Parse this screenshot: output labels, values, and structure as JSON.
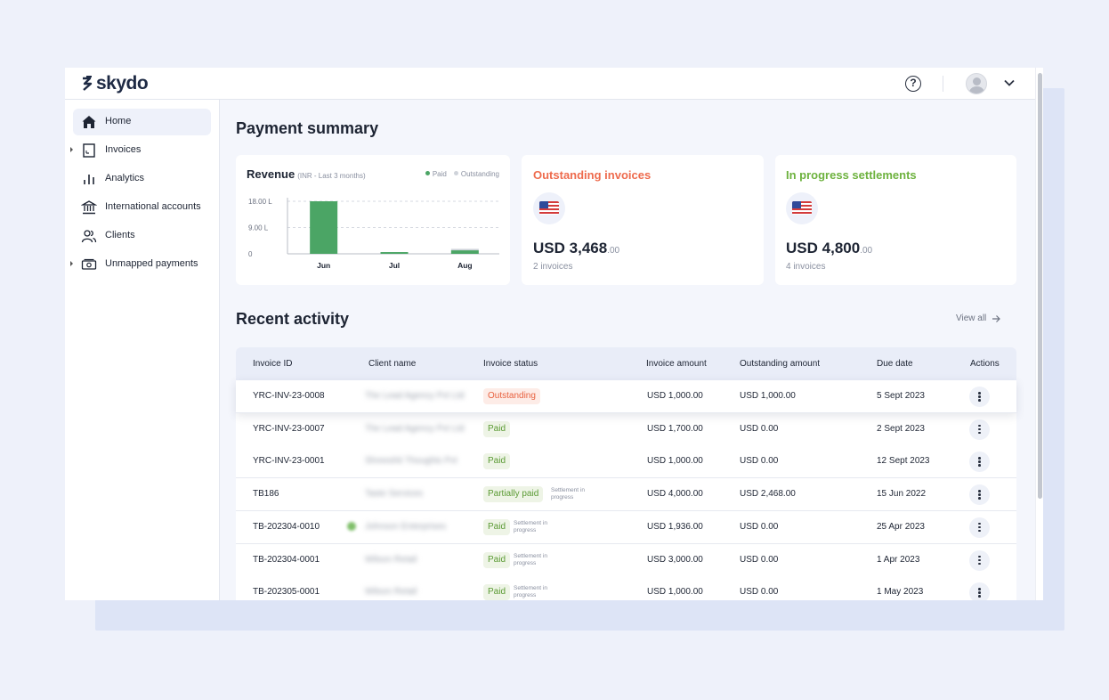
{
  "app": {
    "brand": "skydo"
  },
  "sidebar": {
    "items": [
      {
        "label": "Home",
        "icon": "home-icon",
        "active": true
      },
      {
        "label": "Invoices",
        "icon": "invoice-icon",
        "expandable": true
      },
      {
        "label": "Analytics",
        "icon": "analytics-icon"
      },
      {
        "label": "International accounts",
        "icon": "bank-icon"
      },
      {
        "label": "Clients",
        "icon": "clients-icon"
      },
      {
        "label": "Unmapped payments",
        "icon": "payment-icon",
        "expandable": true
      }
    ]
  },
  "summary": {
    "title": "Payment summary",
    "revenue": {
      "title": "Revenue",
      "subtitle": "(INR - Last 3 months)",
      "legend_paid": "Paid",
      "legend_outstanding": "Outstanding"
    },
    "outstanding": {
      "title": "Outstanding invoices",
      "currency": "USD",
      "amount": "3,468",
      "decimals": ".00",
      "count": "2 invoices"
    },
    "in_progress": {
      "title": "In progress settlements",
      "currency": "USD",
      "amount": "4,800",
      "decimals": ".00",
      "count": "4 invoices"
    }
  },
  "chart_data": {
    "type": "bar",
    "title": "Revenue",
    "subtitle": "(INR - Last 3 months)",
    "categories": [
      "Jun",
      "Jul",
      "Aug"
    ],
    "series": [
      {
        "name": "Paid",
        "values": [
          18.0,
          0.6,
          1.2
        ],
        "color": "#4ba565"
      },
      {
        "name": "Outstanding",
        "values": [
          0,
          0,
          0.5
        ],
        "color": "#cfd3da"
      }
    ],
    "yticks": [
      "0",
      "9.00 L",
      "18.00 L"
    ],
    "ylim": [
      0,
      18
    ],
    "legend": "top-right",
    "grid": true
  },
  "activity": {
    "title": "Recent activity",
    "view_all": "View all",
    "columns": [
      "Invoice ID",
      "Client name",
      "Invoice status",
      "Invoice amount",
      "Outstanding amount",
      "Due date",
      "Actions"
    ],
    "rows": [
      {
        "id": "YRC-INV-23-0008",
        "client": "The Lead Agency Pvt Ltd",
        "status": "Outstanding",
        "status_type": "out",
        "settle": "",
        "amount": "USD 1,000.00",
        "outstanding": "USD 1,000.00",
        "due": "5 Sept 2023"
      },
      {
        "id": "YRC-INV-23-0007",
        "client": "The Lead Agency Pvt Ltd",
        "status": "Paid",
        "status_type": "paid",
        "settle": "",
        "amount": "USD 1,700.00",
        "outstanding": "USD 0.00",
        "due": "2 Sept 2023"
      },
      {
        "id": "YRC-INV-23-0001",
        "client": "Shreeshti Thoughts Pvt",
        "status": "Paid",
        "status_type": "paid",
        "settle": "",
        "amount": "USD 1,000.00",
        "outstanding": "USD 0.00",
        "due": "12 Sept 2023"
      },
      {
        "id": "TB186",
        "client": "Taste Services",
        "status": "Partially paid",
        "status_type": "partial",
        "settle": "Settlement in progress",
        "amount": "USD 4,000.00",
        "outstanding": "USD 2,468.00",
        "due": "15 Jun 2022"
      },
      {
        "id": "TB-202304-0010",
        "client": "Johnson Enterprises",
        "status": "Paid",
        "status_type": "paid",
        "settle": "Settlement in progress",
        "amount": "USD 1,936.00",
        "outstanding": "USD 0.00",
        "due": "25 Apr 2023"
      },
      {
        "id": "TB-202304-0001",
        "client": "Wilson Retail",
        "status": "Paid",
        "status_type": "paid",
        "settle": "Settlement in progress",
        "amount": "USD 3,000.00",
        "outstanding": "USD 0.00",
        "due": "1 Apr 2023"
      },
      {
        "id": "TB-202305-0001",
        "client": "Wilson Retail",
        "status": "Paid",
        "status_type": "paid",
        "settle": "Settlement in progress",
        "amount": "USD 1,000.00",
        "outstanding": "USD 0.00",
        "due": "1 May 2023"
      }
    ]
  }
}
